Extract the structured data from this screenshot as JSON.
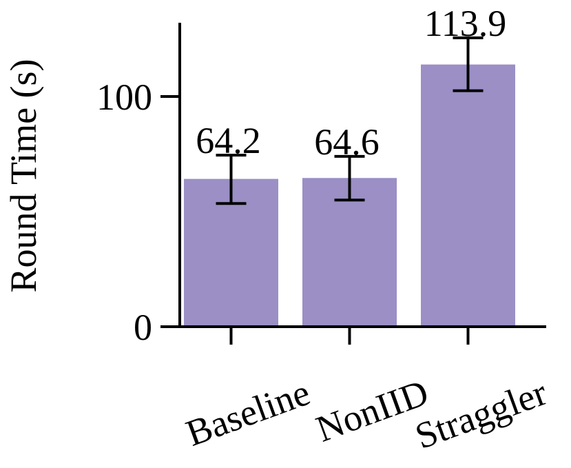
{
  "chart_data": {
    "type": "bar",
    "categories": [
      "Baseline",
      "NonIID",
      "Straggler"
    ],
    "values": [
      64.2,
      64.6,
      113.9
    ],
    "error_low": [
      53.5,
      55.0,
      102.5
    ],
    "error_high": [
      74.5,
      74.0,
      125.5
    ],
    "data_labels": [
      "64.2",
      "64.6",
      "113.9"
    ],
    "ylabel": "Round Time (s)",
    "xlabel": "",
    "ylim": [
      0,
      132
    ],
    "yticks": [
      0,
      100
    ],
    "ytick_labels": [
      "0",
      "100"
    ],
    "bar_color": "#9b8fc5",
    "grid": false,
    "legend": "none"
  }
}
